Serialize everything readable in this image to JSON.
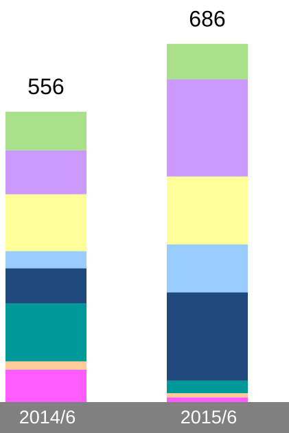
{
  "chart_data": {
    "type": "bar",
    "stacked": true,
    "categories": [
      "2014/6",
      "2015/6"
    ],
    "series": [
      {
        "color": "#ff5cff",
        "values": [
          62,
          9
        ]
      },
      {
        "color": "#ffcc99",
        "values": [
          16,
          8
        ]
      },
      {
        "color": "#009999",
        "values": [
          111,
          24
        ]
      },
      {
        "color": "#1f497d",
        "values": [
          67,
          169
        ]
      },
      {
        "color": "#99ccff",
        "values": [
          33,
          92
        ]
      },
      {
        "color": "#ffff99",
        "values": [
          109,
          130
        ]
      },
      {
        "color": "#cc99ff",
        "values": [
          84,
          186
        ]
      },
      {
        "color": "#a9e18a",
        "values": [
          74,
          68
        ]
      }
    ],
    "totals": [
      556,
      686
    ],
    "ylim": [
      0,
      770
    ]
  }
}
